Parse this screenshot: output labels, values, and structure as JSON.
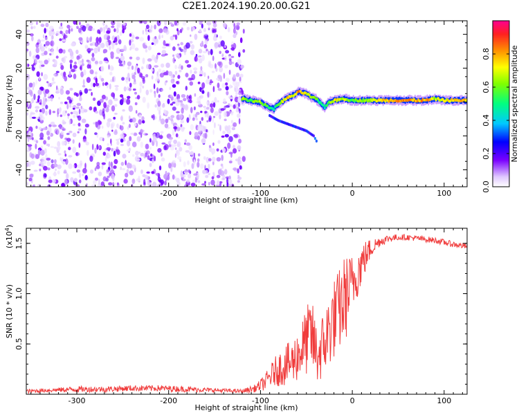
{
  "title": "C2E1.2024.190.20.00.G21",
  "chart_data": [
    {
      "type": "heatmap",
      "xlabel": "Height of straight line (km)",
      "ylabel": "Frequency (Hz)",
      "xlim": [
        -355,
        125
      ],
      "ylim": [
        -50,
        48
      ],
      "xticks": [
        -300,
        -200,
        -100,
        0,
        100
      ],
      "xtick_labels": [
        "-300",
        "-200",
        "-100",
        "0",
        "100"
      ],
      "yticks": [
        -40,
        -20,
        0,
        20,
        40
      ],
      "ytick_labels": [
        "-40",
        "-20",
        "0",
        "20",
        "40"
      ],
      "colorbar": {
        "label": "Normalized spectral amplitude",
        "range": [
          0,
          1
        ],
        "ticks": [
          0.0,
          0.2,
          0.4,
          0.6,
          0.8
        ],
        "tick_labels": [
          "0.0",
          "0.2",
          "0.4",
          "0.6",
          "0.8"
        ]
      },
      "noise_region_x": [
        -355,
        -118
      ],
      "signal_track": {
        "x": [
          -120,
          -110,
          -100,
          -92,
          -85,
          -80,
          -72,
          -64,
          -58,
          -50,
          -45,
          -40,
          -36,
          -30,
          -25,
          -18,
          -10,
          0,
          10,
          20,
          40,
          60,
          80,
          90,
          100,
          110,
          125
        ],
        "freq": [
          2,
          1,
          0,
          -3,
          -4,
          -1,
          2,
          4,
          6,
          5,
          3,
          2,
          0,
          -3,
          0,
          1,
          2,
          1,
          1,
          1,
          1,
          1,
          1,
          2,
          1,
          1,
          1
        ],
        "amplitude": [
          0.65,
          0.6,
          0.7,
          0.55,
          0.5,
          0.6,
          0.8,
          0.7,
          0.85,
          0.75,
          0.7,
          0.65,
          0.55,
          0.5,
          0.6,
          0.8,
          0.7,
          0.6,
          0.65,
          0.7,
          0.8,
          0.85,
          0.85,
          0.7,
          0.75,
          0.8,
          0.8
        ]
      },
      "secondary_track": {
        "x": [
          -90,
          -80,
          -70,
          -60,
          -50,
          -42,
          -38
        ],
        "freq": [
          -8,
          -11,
          -13,
          -15,
          -17,
          -20,
          -24
        ],
        "amplitude": [
          0.3,
          0.3,
          0.35,
          0.3,
          0.3,
          0.35,
          0.4
        ]
      }
    },
    {
      "type": "line",
      "xlabel": "Height of straight line (km)",
      "ylabel": "SNR (10 * v/v)",
      "y_multiplier_label": "(x10",
      "y_multiplier_exp": "4",
      "y_multiplier_close": ")",
      "xlim": [
        -355,
        125
      ],
      "ylim": [
        0,
        1.65
      ],
      "xticks": [
        -300,
        -200,
        -100,
        0,
        100
      ],
      "xtick_labels": [
        "-300",
        "-200",
        "-100",
        "0",
        "100"
      ],
      "yticks": [
        0.5,
        1.0,
        1.5
      ],
      "ytick_labels": [
        "0.5",
        "1.0",
        "1.5"
      ],
      "color": "#f03c3c",
      "series": [
        {
          "x": [
            -355,
            -330,
            -300,
            -270,
            -240,
            -210,
            -180,
            -150,
            -120,
            -105,
            -95,
            -85,
            -75,
            -65,
            -55,
            -45,
            -38,
            -30,
            -22,
            -15,
            -8,
            0,
            10,
            20,
            30,
            40,
            50,
            60,
            70,
            80,
            90,
            100,
            110,
            125
          ],
          "y": [
            0.03,
            0.04,
            0.05,
            0.05,
            0.06,
            0.06,
            0.05,
            0.04,
            0.03,
            0.06,
            0.12,
            0.22,
            0.28,
            0.32,
            0.45,
            0.6,
            0.38,
            0.52,
            0.72,
            0.82,
            0.95,
            1.1,
            1.3,
            1.45,
            1.52,
            1.55,
            1.56,
            1.56,
            1.55,
            1.54,
            1.53,
            1.51,
            1.49,
            1.47
          ],
          "noise": [
            0.02,
            0.02,
            0.03,
            0.03,
            0.03,
            0.03,
            0.03,
            0.02,
            0.02,
            0.04,
            0.08,
            0.14,
            0.2,
            0.22,
            0.3,
            0.38,
            0.3,
            0.35,
            0.4,
            0.42,
            0.45,
            0.3,
            0.22,
            0.1,
            0.05,
            0.04,
            0.03,
            0.03,
            0.03,
            0.03,
            0.03,
            0.03,
            0.03,
            0.03
          ]
        }
      ]
    }
  ]
}
